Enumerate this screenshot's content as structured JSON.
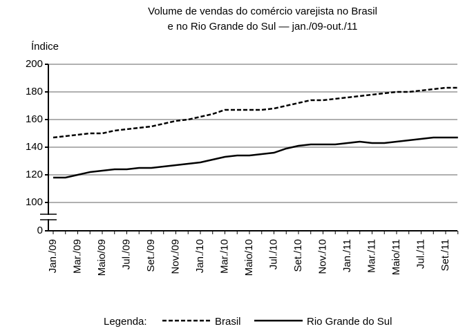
{
  "chart_data": {
    "type": "line",
    "title": [
      "Volume de vendas do comércio varejista no Brasil",
      "e no Rio Grande do Sul — jan./09-out./11"
    ],
    "y_label": "Índice",
    "legend_title": "Legenda:",
    "categories": [
      "Jan./09",
      null,
      "Mar./09",
      null,
      "Maio/09",
      null,
      "Jul./09",
      null,
      "Set./09",
      null,
      "Nov./09",
      null,
      "Jan./10",
      null,
      "Mar./10",
      null,
      "Maio/10",
      null,
      "Jul./10",
      null,
      "Set./10",
      null,
      "Nov./10",
      null,
      "Jan./11",
      null,
      "Mar./11",
      null,
      "Maio/11",
      null,
      "Jul./11",
      null,
      "Set./11",
      null
    ],
    "series": [
      {
        "name": "Brasil",
        "color": "#000000",
        "dash": true,
        "values": [
          147,
          148,
          149,
          150,
          150,
          152,
          153,
          154,
          155,
          157,
          159,
          160,
          162,
          164,
          167,
          167,
          167,
          167,
          168,
          170,
          172,
          174,
          174,
          175,
          176,
          177,
          178,
          179,
          180,
          180,
          181,
          182,
          183,
          183
        ]
      },
      {
        "name": "Rio Grande do Sul",
        "color": "#000000",
        "dash": false,
        "values": [
          118,
          118,
          120,
          122,
          123,
          124,
          124,
          125,
          125,
          126,
          127,
          128,
          129,
          131,
          133,
          134,
          134,
          135,
          136,
          139,
          141,
          142,
          142,
          142,
          143,
          144,
          143,
          143,
          144,
          145,
          146,
          147,
          147,
          147
        ]
      }
    ],
    "ylim": [
      0,
      200
    ],
    "yticks": [
      0,
      100,
      120,
      140,
      160,
      180,
      200
    ],
    "axis_break": true,
    "grid": true
  }
}
